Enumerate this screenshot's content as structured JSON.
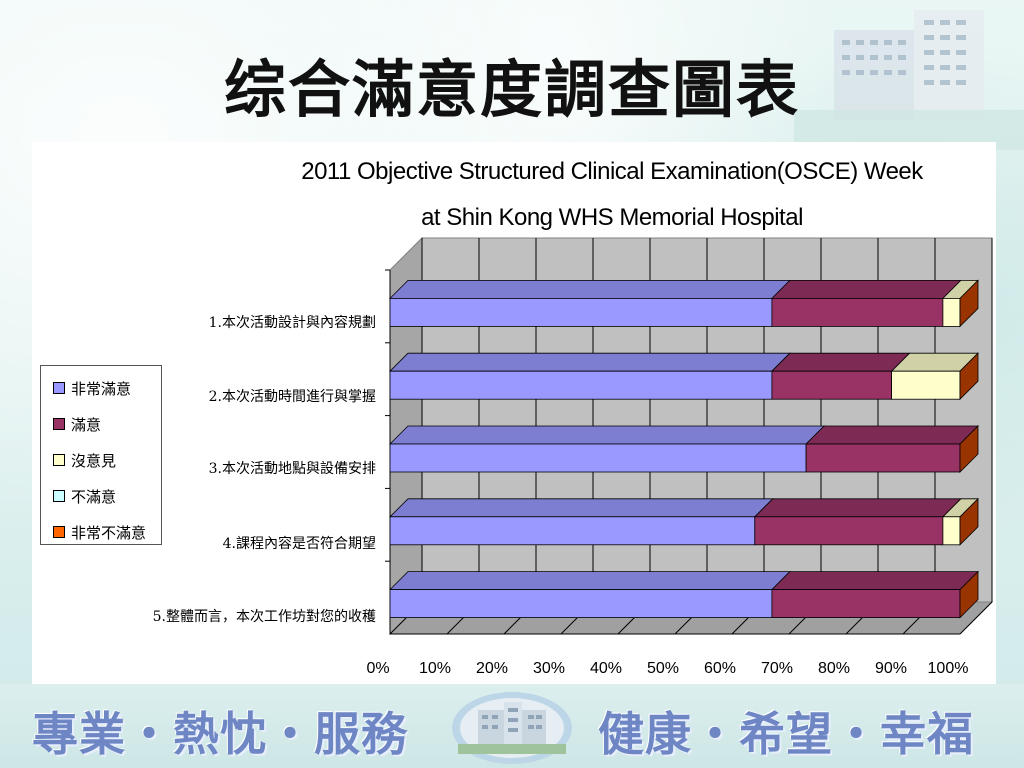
{
  "slide": {
    "title": "综合滿意度調查圖表",
    "footer_left": "專業・熱忱・服務",
    "footer_right": "健康・希望・幸福"
  },
  "chart_data": {
    "type": "bar",
    "orientation": "horizontal",
    "stacked": "percent",
    "style": "3d",
    "title": "2011 Objective Structured Clinical Examination(OSCE) Week",
    "subtitle": "at Shin Kong WHS Memorial Hospital",
    "categories": [
      "1.本次活動設計與內容規劃",
      "2.本次活動時間進行與掌握",
      "3.本次活動地點與設備安排",
      "4.課程內容是否符合期望",
      "5.整體而言，本次工作坊對您的收穫"
    ],
    "series": [
      {
        "name": "非常滿意",
        "color": "#9999ff",
        "values": [
          67,
          67,
          73,
          64,
          67
        ]
      },
      {
        "name": "滿意",
        "color": "#993366",
        "values": [
          30,
          21,
          27,
          33,
          33
        ]
      },
      {
        "name": "沒意見",
        "color": "#ffffcc",
        "values": [
          3,
          12,
          0,
          3,
          0
        ]
      },
      {
        "name": "不滿意",
        "color": "#ccffff",
        "values": [
          0,
          0,
          0,
          0,
          0
        ]
      },
      {
        "name": "非常不滿意",
        "color": "#ff6600",
        "values": [
          0,
          0,
          0,
          0,
          0
        ]
      }
    ],
    "xticks": [
      "0%",
      "10%",
      "20%",
      "30%",
      "40%",
      "50%",
      "60%",
      "70%",
      "80%",
      "90%",
      "100%"
    ],
    "xlim": [
      0,
      100
    ],
    "grid": true,
    "legend": "left"
  }
}
